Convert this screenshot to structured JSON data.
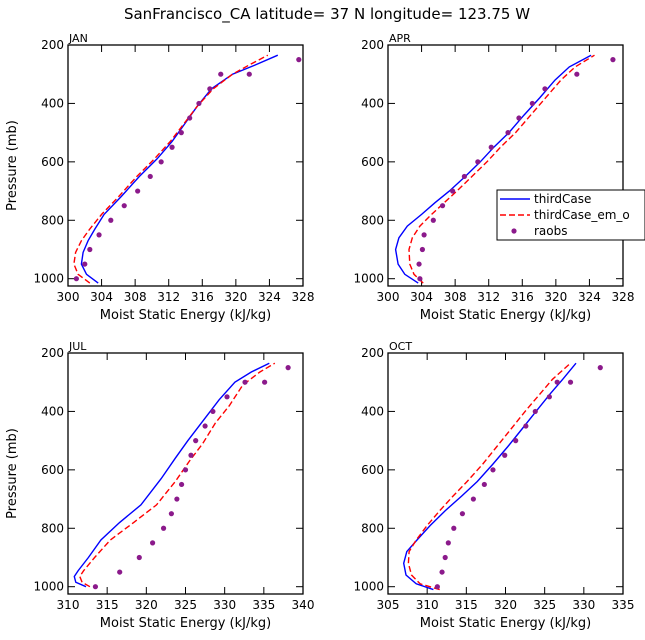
{
  "figure": {
    "title": "SanFrancisco_CA  latitude= 37 N longitude= 123.75 W",
    "ylabel": "Pressure (mb)",
    "xlabel": "Moist Static Energy (kJ/kg)"
  },
  "legend": {
    "placement": "right of APR panel",
    "entries": [
      {
        "label": "thirdCase",
        "color": "#0000ff",
        "style": "solid"
      },
      {
        "label": "thirdCase_em_o",
        "color": "#ff0000",
        "style": "dashed"
      },
      {
        "label": "raobs",
        "color": "#8b1a8b",
        "style": "dot"
      }
    ]
  },
  "chart_data": [
    {
      "type": "line",
      "panel": "JAN",
      "xlabel": "Moist Static Energy (kJ/kg)",
      "ylabel": "Pressure (mb)",
      "xlim": [
        300,
        328
      ],
      "xticks": [
        300,
        304,
        308,
        312,
        316,
        320,
        324,
        328
      ],
      "ylim": [
        1025,
        200
      ],
      "yticks": [
        200,
        400,
        600,
        800,
        1000
      ],
      "series": [
        {
          "name": "thirdCase",
          "color": "#0000ff",
          "style": "solid",
          "points": [
            [
              303.6,
              1015
            ],
            [
              302.2,
              985
            ],
            [
              301.6,
              950
            ],
            [
              301.8,
              910
            ],
            [
              302.4,
              870
            ],
            [
              303.2,
              830
            ],
            [
              304.3,
              780
            ],
            [
              306.3,
              720
            ],
            [
              308.5,
              650
            ],
            [
              310.6,
              590
            ],
            [
              312.4,
              530
            ],
            [
              313.9,
              470
            ],
            [
              315.4,
              410
            ],
            [
              317.1,
              350
            ],
            [
              319.6,
              300
            ],
            [
              322.2,
              270
            ],
            [
              325,
              235
            ]
          ]
        },
        {
          "name": "thirdCase_em_o",
          "color": "#ff0000",
          "style": "dashed",
          "points": [
            [
              302.6,
              1015
            ],
            [
              301.2,
              985
            ],
            [
              300.7,
              950
            ],
            [
              300.9,
              910
            ],
            [
              301.6,
              870
            ],
            [
              302.6,
              830
            ],
            [
              304,
              780
            ],
            [
              306,
              720
            ],
            [
              308.2,
              650
            ],
            [
              310.3,
              590
            ],
            [
              312.2,
              530
            ],
            [
              313.8,
              470
            ],
            [
              315.4,
              410
            ],
            [
              317.3,
              350
            ],
            [
              319.6,
              300
            ],
            [
              321.8,
              265
            ],
            [
              323.8,
              235
            ]
          ]
        },
        {
          "name": "raobs",
          "color": "#8b1a8b",
          "style": "dot",
          "points": [
            [
              301,
              1000
            ],
            [
              302,
              950
            ],
            [
              302.6,
              900
            ],
            [
              303.7,
              850
            ],
            [
              305.1,
              800
            ],
            [
              306.7,
              750
            ],
            [
              308.3,
              700
            ],
            [
              309.8,
              650
            ],
            [
              311.1,
              600
            ],
            [
              312.4,
              550
            ],
            [
              313.5,
              500
            ],
            [
              314.5,
              450
            ],
            [
              315.6,
              400
            ],
            [
              316.9,
              350
            ],
            [
              318.2,
              300
            ],
            [
              321.6,
              300
            ],
            [
              327.5,
              250
            ]
          ]
        }
      ]
    },
    {
      "type": "line",
      "panel": "APR",
      "xlabel": "Moist Static Energy (kJ/kg)",
      "ylabel": "",
      "xlim": [
        300,
        328
      ],
      "xticks": [
        300,
        304,
        308,
        312,
        316,
        320,
        324,
        328
      ],
      "ylim": [
        1025,
        200
      ],
      "yticks": [
        200,
        400,
        600,
        800,
        1000
      ],
      "series": [
        {
          "name": "thirdCase",
          "color": "#0000ff",
          "style": "solid",
          "points": [
            [
              303.6,
              1015
            ],
            [
              302,
              985
            ],
            [
              301.2,
              950
            ],
            [
              300.9,
              900
            ],
            [
              301.3,
              860
            ],
            [
              302.3,
              820
            ],
            [
              304,
              780
            ],
            [
              305.6,
              740
            ],
            [
              307.3,
              700
            ],
            [
              309.2,
              650
            ],
            [
              311,
              600
            ],
            [
              312.6,
              550
            ],
            [
              314.4,
              500
            ],
            [
              316.2,
              440
            ],
            [
              318.1,
              380
            ],
            [
              319.9,
              320
            ],
            [
              321.6,
              275
            ],
            [
              324.2,
              235
            ]
          ]
        },
        {
          "name": "thirdCase_em_o",
          "color": "#ff0000",
          "style": "dashed",
          "points": [
            [
              304.2,
              1015
            ],
            [
              303.1,
              985
            ],
            [
              302.6,
              950
            ],
            [
              302.5,
              900
            ],
            [
              302.9,
              860
            ],
            [
              303.8,
              820
            ],
            [
              305.2,
              780
            ],
            [
              306.7,
              740
            ],
            [
              308.2,
              700
            ],
            [
              310,
              650
            ],
            [
              311.8,
              600
            ],
            [
              313.4,
              550
            ],
            [
              315.2,
              500
            ],
            [
              317,
              440
            ],
            [
              318.8,
              380
            ],
            [
              320.6,
              320
            ],
            [
              322.3,
              275
            ],
            [
              324.6,
              235
            ]
          ]
        },
        {
          "name": "raobs",
          "color": "#8b1a8b",
          "style": "dot",
          "points": [
            [
              303.8,
              1000
            ],
            [
              303.7,
              950
            ],
            [
              304.1,
              900
            ],
            [
              304.3,
              850
            ],
            [
              305.4,
              800
            ],
            [
              306.5,
              750
            ],
            [
              307.7,
              700
            ],
            [
              309.1,
              650
            ],
            [
              310.7,
              600
            ],
            [
              312.3,
              550
            ],
            [
              314.3,
              500
            ],
            [
              315.6,
              450
            ],
            [
              317.2,
              400
            ],
            [
              318.7,
              350
            ],
            [
              322.5,
              300
            ],
            [
              326.8,
              250
            ]
          ]
        }
      ]
    },
    {
      "type": "line",
      "panel": "JUL",
      "xlabel": "Moist Static Energy (kJ/kg)",
      "ylabel": "Pressure (mb)",
      "xlim": [
        310,
        340
      ],
      "xticks": [
        310,
        315,
        320,
        325,
        330,
        335,
        340
      ],
      "ylim": [
        1025,
        200
      ],
      "yticks": [
        200,
        400,
        600,
        800,
        1000
      ],
      "series": [
        {
          "name": "thirdCase",
          "color": "#0000ff",
          "style": "solid",
          "points": [
            [
              312.3,
              1000
            ],
            [
              311,
              985
            ],
            [
              310.8,
              965
            ],
            [
              311.3,
              945
            ],
            [
              312.6,
              900
            ],
            [
              314.2,
              840
            ],
            [
              316.6,
              780
            ],
            [
              319.3,
              720
            ],
            [
              321.9,
              630
            ],
            [
              323.7,
              560
            ],
            [
              325.3,
              500
            ],
            [
              327.3,
              430
            ],
            [
              329.3,
              360
            ],
            [
              331.3,
              300
            ],
            [
              333.4,
              265
            ],
            [
              335.7,
              235
            ]
          ]
        },
        {
          "name": "thirdCase_em_o",
          "color": "#ff0000",
          "style": "dashed",
          "points": [
            [
              312.8,
              1000
            ],
            [
              311.8,
              985
            ],
            [
              311.5,
              965
            ],
            [
              312,
              945
            ],
            [
              313.4,
              900
            ],
            [
              315.4,
              840
            ],
            [
              318.4,
              780
            ],
            [
              321.3,
              720
            ],
            [
              323.7,
              640
            ],
            [
              325.5,
              570
            ],
            [
              327.2,
              510
            ],
            [
              328.8,
              440
            ],
            [
              330.6,
              380
            ],
            [
              332.3,
              310
            ],
            [
              334.5,
              265
            ],
            [
              336.4,
              235
            ]
          ]
        },
        {
          "name": "raobs",
          "color": "#8b1a8b",
          "style": "dot",
          "points": [
            [
              313.5,
              1000
            ],
            [
              316.6,
              950
            ],
            [
              319.1,
              900
            ],
            [
              320.8,
              850
            ],
            [
              322.2,
              800
            ],
            [
              323.2,
              750
            ],
            [
              323.9,
              700
            ],
            [
              324.5,
              650
            ],
            [
              325,
              600
            ],
            [
              325.7,
              550
            ],
            [
              326.3,
              500
            ],
            [
              327.5,
              450
            ],
            [
              328.5,
              400
            ],
            [
              330.3,
              350
            ],
            [
              332.6,
              300
            ],
            [
              335.1,
              300
            ],
            [
              338.1,
              250
            ]
          ]
        }
      ]
    },
    {
      "type": "line",
      "panel": "OCT",
      "xlabel": "Moist Static Energy (kJ/kg)",
      "ylabel": "",
      "xlim": [
        305,
        335
      ],
      "xticks": [
        305,
        310,
        315,
        320,
        325,
        330,
        335
      ],
      "ylim": [
        1025,
        200
      ],
      "yticks": [
        200,
        400,
        600,
        800,
        1000
      ],
      "series": [
        {
          "name": "thirdCase",
          "color": "#0000ff",
          "style": "solid",
          "points": [
            [
              310.8,
              1010
            ],
            [
              308.6,
              990
            ],
            [
              307.3,
              960
            ],
            [
              307,
              920
            ],
            [
              307.4,
              880
            ],
            [
              308.7,
              840
            ],
            [
              310.4,
              790
            ],
            [
              312.3,
              740
            ],
            [
              314.4,
              690
            ],
            [
              316.4,
              640
            ],
            [
              318.4,
              580
            ],
            [
              320.3,
              520
            ],
            [
              322.1,
              460
            ],
            [
              323.9,
              400
            ],
            [
              325.7,
              340
            ],
            [
              327.3,
              290
            ],
            [
              329,
              235
            ]
          ]
        },
        {
          "name": "thirdCase_em_o",
          "color": "#ff0000",
          "style": "dashed",
          "points": [
            [
              311.6,
              1010
            ],
            [
              309.1,
              990
            ],
            [
              308,
              960
            ],
            [
              307.6,
              920
            ],
            [
              307.7,
              880
            ],
            [
              308.6,
              840
            ],
            [
              310,
              790
            ],
            [
              311.6,
              740
            ],
            [
              313.3,
              690
            ],
            [
              315.1,
              640
            ],
            [
              317.1,
              580
            ],
            [
              318.9,
              520
            ],
            [
              320.7,
              460
            ],
            [
              322.5,
              400
            ],
            [
              324.4,
              340
            ],
            [
              326,
              290
            ],
            [
              328.3,
              235
            ]
          ]
        },
        {
          "name": "raobs",
          "color": "#8b1a8b",
          "style": "dot",
          "points": [
            [
              311.3,
              1000
            ],
            [
              311.9,
              950
            ],
            [
              312.3,
              900
            ],
            [
              312.7,
              850
            ],
            [
              313.4,
              800
            ],
            [
              314.5,
              750
            ],
            [
              315.9,
              700
            ],
            [
              317.3,
              650
            ],
            [
              318.4,
              600
            ],
            [
              319.9,
              550
            ],
            [
              321.3,
              500
            ],
            [
              322.6,
              450
            ],
            [
              323.8,
              400
            ],
            [
              325.6,
              350
            ],
            [
              326.6,
              300
            ],
            [
              328.3,
              300
            ],
            [
              332.1,
              250
            ]
          ]
        }
      ]
    }
  ]
}
